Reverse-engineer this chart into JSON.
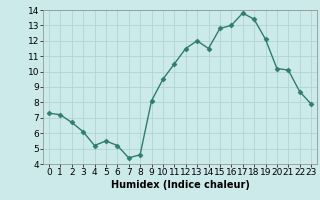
{
  "x": [
    0,
    1,
    2,
    3,
    4,
    5,
    6,
    7,
    8,
    9,
    10,
    11,
    12,
    13,
    14,
    15,
    16,
    17,
    18,
    19,
    20,
    21,
    22,
    23
  ],
  "y": [
    7.3,
    7.2,
    6.7,
    6.1,
    5.2,
    5.5,
    5.2,
    4.4,
    4.6,
    8.1,
    9.5,
    10.5,
    11.5,
    12.0,
    11.5,
    12.8,
    13.0,
    13.8,
    13.4,
    12.1,
    10.2,
    10.1,
    8.7,
    7.9
  ],
  "line_color": "#2e7d6e",
  "marker": "D",
  "marker_size": 2.5,
  "bg_color": "#cdeaea",
  "grid_color": "#b0d4d4",
  "xlabel": "Humidex (Indice chaleur)",
  "xlim": [
    -0.5,
    23.5
  ],
  "ylim": [
    4,
    14
  ],
  "yticks": [
    4,
    5,
    6,
    7,
    8,
    9,
    10,
    11,
    12,
    13,
    14
  ],
  "xticks": [
    0,
    1,
    2,
    3,
    4,
    5,
    6,
    7,
    8,
    9,
    10,
    11,
    12,
    13,
    14,
    15,
    16,
    17,
    18,
    19,
    20,
    21,
    22,
    23
  ],
  "label_fontsize": 7,
  "tick_fontsize": 6.5
}
